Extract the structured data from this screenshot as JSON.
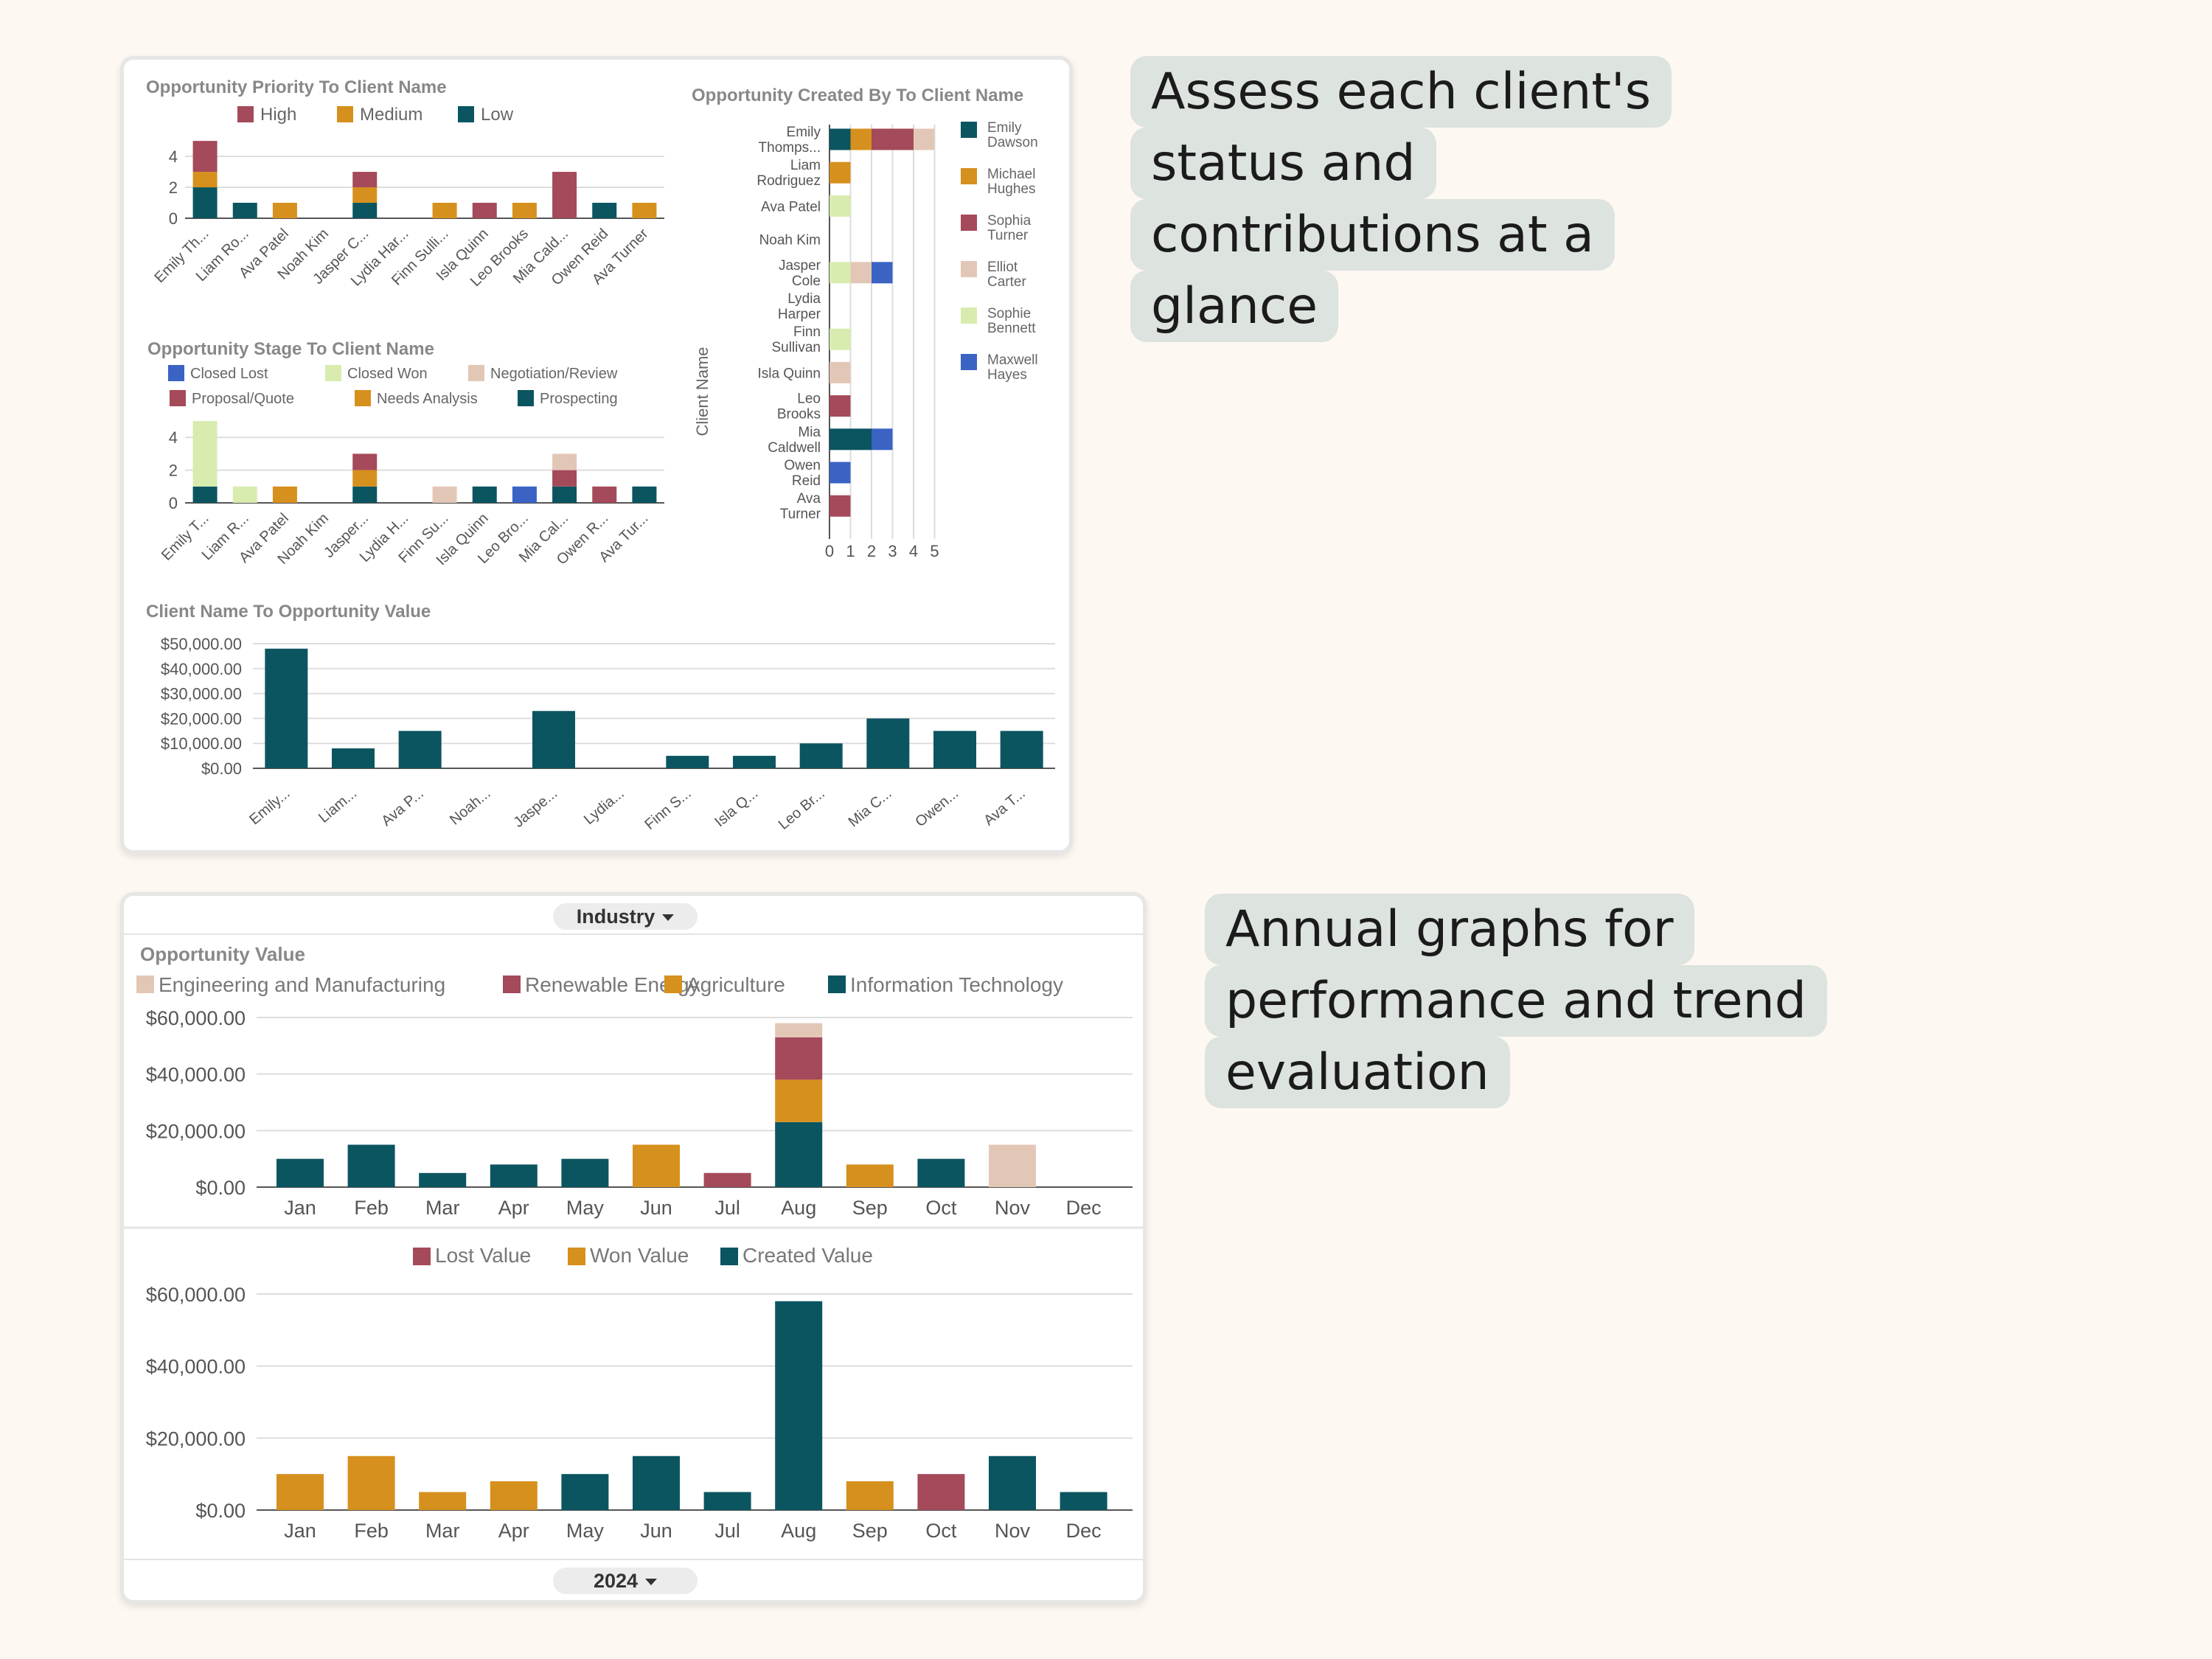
{
  "colors": {
    "teal": "#0b5560",
    "orange": "#d6901d",
    "red": "#a44a5a",
    "beige": "#e3c7b6",
    "lightgreen": "#d8ecb0",
    "blue": "#3a63c4"
  },
  "callouts": {
    "top": [
      "Assess each client's",
      "status and",
      "contributions at a",
      "glance"
    ],
    "bottom": [
      "Annual graphs for",
      "performance and trend",
      "evaluation"
    ]
  },
  "clients_short": [
    "Emily Th...",
    "Liam Ro...",
    "Ava Patel",
    "Noah Kim",
    "Jasper C...",
    "Lydia Har...",
    "Finn Sulli...",
    "Isla Quinn",
    "Leo Brooks",
    "Mia Cald...",
    "Owen Reid",
    "Ava Turner"
  ],
  "clients_short2": [
    "Emily T...",
    "Liam R...",
    "Ava Patel",
    "Noah Kim",
    "Jasper...",
    "Lydia H...",
    "Finn Su...",
    "Isla Quinn",
    "Leo Bro...",
    "Mia Cal...",
    "Owen R...",
    "Ava Tur..."
  ],
  "clients_short3": [
    "Emily...",
    "Liam...",
    "Ava P...",
    "Noah...",
    "Jaspe...",
    "Lydia...",
    "Finn S...",
    "Isla Q...",
    "Leo Br...",
    "Mia C...",
    "Owen...",
    "Ava T..."
  ],
  "clients_full": [
    [
      "Emily",
      "Thomps..."
    ],
    [
      "Liam",
      "Rodriguez"
    ],
    [
      "Ava Patel"
    ],
    [
      "Noah Kim"
    ],
    [
      "Jasper",
      "Cole"
    ],
    [
      "Lydia",
      "Harper"
    ],
    [
      "Finn",
      "Sullivan"
    ],
    [
      "Isla Quinn"
    ],
    [
      "Leo",
      "Brooks"
    ],
    [
      "Mia",
      "Caldwell"
    ],
    [
      "Owen",
      "Reid"
    ],
    [
      "Ava",
      "Turner"
    ]
  ],
  "months": [
    "Jan",
    "Feb",
    "Mar",
    "Apr",
    "May",
    "Jun",
    "Jul",
    "Aug",
    "Sep",
    "Oct",
    "Nov",
    "Dec"
  ],
  "dropdowns": {
    "industry": "Industry",
    "year": "2024"
  },
  "chart_data": [
    {
      "type": "bar",
      "title": "Opportunity Priority To Client Name",
      "stacked": true,
      "categories": [
        "Emily Th...",
        "Liam Ro...",
        "Ava Patel",
        "Noah Kim",
        "Jasper C...",
        "Lydia Har...",
        "Finn Sulli...",
        "Isla Quinn",
        "Leo Brooks",
        "Mia Cald...",
        "Owen Reid",
        "Ava Turner"
      ],
      "ylim": [
        0,
        5
      ],
      "yticks": [
        0,
        2,
        4
      ],
      "legend": [
        "High",
        "Medium",
        "Low"
      ],
      "series": [
        {
          "name": "Low",
          "color": "#0b5560",
          "values": [
            2,
            1,
            0,
            0,
            1,
            0,
            0,
            0,
            0,
            0,
            1,
            0
          ]
        },
        {
          "name": "Medium",
          "color": "#d6901d",
          "values": [
            1,
            0,
            1,
            0,
            1,
            0,
            1,
            0,
            1,
            0,
            0,
            1
          ]
        },
        {
          "name": "High",
          "color": "#a44a5a",
          "values": [
            2,
            0,
            0,
            0,
            1,
            0,
            0,
            1,
            0,
            3,
            0,
            0
          ]
        }
      ]
    },
    {
      "type": "bar",
      "title": "Opportunity Stage To Client Name",
      "stacked": true,
      "categories": [
        "Emily T...",
        "Liam R...",
        "Ava Patel",
        "Noah Kim",
        "Jasper...",
        "Lydia H...",
        "Finn Su...",
        "Isla Quinn",
        "Leo Bro...",
        "Mia Cal...",
        "Owen R...",
        "Ava Tur..."
      ],
      "ylim": [
        0,
        5
      ],
      "yticks": [
        0,
        2,
        4
      ],
      "legend": [
        "Closed Lost",
        "Closed Won",
        "Negotiation/Review",
        "Proposal/Quote",
        "Needs Analysis",
        "Prospecting"
      ],
      "series": [
        {
          "name": "Prospecting",
          "color": "#0b5560",
          "values": [
            1,
            0,
            0,
            0,
            1,
            0,
            0,
            1,
            0,
            1,
            0,
            1
          ]
        },
        {
          "name": "Closed Lost",
          "color": "#3a63c4",
          "values": [
            0,
            0,
            0,
            0,
            0,
            0,
            0,
            0,
            1,
            0,
            0,
            0
          ]
        },
        {
          "name": "Needs Analysis",
          "color": "#d6901d",
          "values": [
            0,
            0,
            1,
            0,
            1,
            0,
            0,
            0,
            0,
            0,
            0,
            0
          ]
        },
        {
          "name": "Proposal/Quote",
          "color": "#a44a5a",
          "values": [
            0,
            0,
            0,
            0,
            1,
            0,
            0,
            0,
            0,
            1,
            1,
            0
          ]
        },
        {
          "name": "Closed Won",
          "color": "#d8ecb0",
          "values": [
            4,
            1,
            0,
            0,
            0,
            0,
            0,
            0,
            0,
            0,
            0,
            0
          ]
        },
        {
          "name": "Negotiation/Review",
          "color": "#e3c7b6",
          "values": [
            0,
            0,
            0,
            0,
            0,
            0,
            1,
            0,
            0,
            1,
            0,
            0
          ]
        }
      ]
    },
    {
      "type": "bar",
      "orientation": "horizontal",
      "stacked": true,
      "title": "Opportunity Created By To Client Name",
      "ylabel": "Client Name",
      "categories": [
        "Emily Thomps...",
        "Liam Rodriguez",
        "Ava Patel",
        "Noah Kim",
        "Jasper Cole",
        "Lydia Harper",
        "Finn Sullivan",
        "Isla Quinn",
        "Leo Brooks",
        "Mia Caldwell",
        "Owen Reid",
        "Ava Turner"
      ],
      "xlim": [
        0,
        5
      ],
      "xticks": [
        0,
        1,
        2,
        3,
        4,
        5
      ],
      "legend": [
        [
          "Emily",
          "Dawson"
        ],
        [
          "Michael",
          "Hughes"
        ],
        [
          "Sophia",
          "Turner"
        ],
        [
          "Elliot",
          "Carter"
        ],
        [
          "Sophie",
          "Bennett"
        ],
        [
          "Maxwell",
          "Hayes"
        ]
      ],
      "series": [
        {
          "name": "Emily Dawson",
          "color": "#0b5560",
          "values": [
            1,
            0,
            0,
            0,
            0,
            0,
            0,
            0,
            0,
            2,
            0,
            0
          ]
        },
        {
          "name": "Michael Hughes",
          "color": "#d6901d",
          "values": [
            1,
            1,
            0,
            0,
            0,
            0,
            0,
            0,
            0,
            0,
            0,
            0
          ]
        },
        {
          "name": "Sophie Bennett",
          "color": "#d8ecb0",
          "values": [
            0,
            0,
            1,
            0,
            1,
            0,
            1,
            0,
            0,
            0,
            0,
            0
          ]
        },
        {
          "name": "Elliot Carter",
          "color": "#e3c7b6",
          "values": [
            0,
            0,
            0,
            0,
            1,
            0,
            0,
            1,
            0,
            0,
            0,
            0
          ]
        },
        {
          "name": "Maxwell Hayes",
          "color": "#3a63c4",
          "values": [
            0,
            0,
            0,
            0,
            1,
            0,
            0,
            0,
            0,
            1,
            1,
            0
          ]
        },
        {
          "name": "Sophia Turner",
          "color": "#a44a5a",
          "values": [
            2,
            0,
            0,
            0,
            0,
            0,
            0,
            0,
            1,
            0,
            0,
            1
          ]
        },
        {
          "name": "Elliot Carter 2",
          "color": "#e3c7b6",
          "values": [
            1,
            0,
            0,
            0,
            0,
            0,
            0,
            0,
            0,
            0,
            0,
            0
          ]
        }
      ]
    },
    {
      "type": "bar",
      "title": "Client Name To Opportunity Value",
      "categories": [
        "Emily...",
        "Liam...",
        "Ava P...",
        "Noah...",
        "Jaspe...",
        "Lydia...",
        "Finn S...",
        "Isla Q...",
        "Leo Br...",
        "Mia C...",
        "Owen...",
        "Ava T..."
      ],
      "values": [
        48000,
        8000,
        15000,
        0,
        23000,
        0,
        5000,
        5000,
        10000,
        20000,
        15000,
        15000
      ],
      "ylim": [
        0,
        50000
      ],
      "yticks": [
        "$0.00",
        "$10,000.00",
        "$20,000.00",
        "$30,000.00",
        "$40,000.00",
        "$50,000.00"
      ]
    },
    {
      "type": "bar",
      "title": "Opportunity Value",
      "stacked": true,
      "categories": [
        "Jan",
        "Feb",
        "Mar",
        "Apr",
        "May",
        "Jun",
        "Jul",
        "Aug",
        "Sep",
        "Oct",
        "Nov",
        "Dec"
      ],
      "ylim": [
        0,
        60000
      ],
      "yticks": [
        "$0.00",
        "$20,000.00",
        "$40,000.00",
        "$60,000.00"
      ],
      "legend": [
        "Engineering and Manufacturing",
        "Renewable Energy",
        "Agriculture",
        "Information Technology"
      ],
      "series": [
        {
          "name": "Information Technology",
          "color": "#0b5560",
          "values": [
            10000,
            15000,
            5000,
            8000,
            10000,
            0,
            0,
            23000,
            0,
            10000,
            0,
            0
          ]
        },
        {
          "name": "Agriculture",
          "color": "#d6901d",
          "values": [
            0,
            0,
            0,
            0,
            0,
            15000,
            0,
            15000,
            8000,
            0,
            0,
            0
          ]
        },
        {
          "name": "Renewable Energy",
          "color": "#a44a5a",
          "values": [
            0,
            0,
            0,
            0,
            0,
            0,
            5000,
            15000,
            0,
            0,
            0,
            0
          ]
        },
        {
          "name": "Engineering and Manufacturing",
          "color": "#e3c7b6",
          "values": [
            0,
            0,
            0,
            0,
            0,
            0,
            0,
            5000,
            0,
            0,
            15000,
            0
          ]
        }
      ]
    },
    {
      "type": "bar",
      "categories": [
        "Jan",
        "Feb",
        "Mar",
        "Apr",
        "May",
        "Jun",
        "Jul",
        "Aug",
        "Sep",
        "Oct",
        "Nov",
        "Dec"
      ],
      "ylim": [
        0,
        60000
      ],
      "yticks": [
        "$0.00",
        "$20,000.00",
        "$40,000.00",
        "$60,000.00"
      ],
      "legend": [
        "Lost Value",
        "Won Value",
        "Created Value"
      ],
      "bars": [
        {
          "series": "Won Value",
          "value": 10000
        },
        {
          "series": "Won Value",
          "value": 15000
        },
        {
          "series": "Won Value",
          "value": 5000
        },
        {
          "series": "Won Value",
          "value": 8000
        },
        {
          "series": "Created Value",
          "value": 10000
        },
        {
          "series": "Created Value",
          "value": 15000
        },
        {
          "series": "Created Value",
          "value": 5000
        },
        {
          "series": "Created Value",
          "value": 58000
        },
        {
          "series": "Won Value",
          "value": 8000
        },
        {
          "series": "Lost Value",
          "value": 10000
        },
        {
          "series": "Created Value",
          "value": 15000
        },
        {
          "series": "Created Value",
          "value": 5000
        }
      ],
      "series_colors": {
        "Lost Value": "#a44a5a",
        "Won Value": "#d6901d",
        "Created Value": "#0b5560"
      }
    }
  ]
}
